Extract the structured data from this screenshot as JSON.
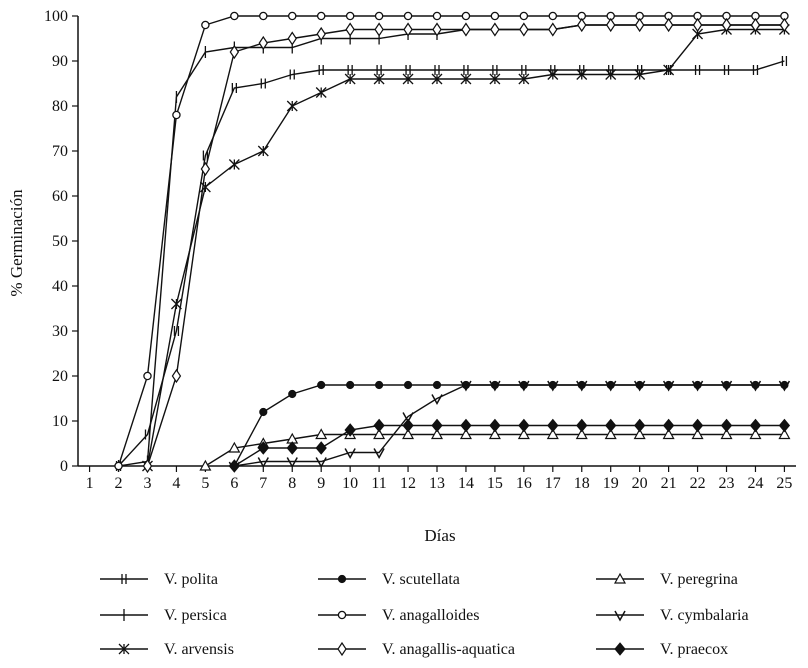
{
  "chart_data": {
    "type": "line",
    "title": "",
    "xlabel": "Días",
    "ylabel": "% Germinación",
    "xlim": [
      1,
      25
    ],
    "ylim": [
      0,
      100
    ],
    "x_ticks": [
      "1",
      "2",
      "3",
      "4",
      "5",
      "6",
      "7",
      "8",
      "9",
      "10",
      "11",
      "12",
      "13",
      "14",
      "15",
      "16",
      "17",
      "18",
      "19",
      "20",
      "21",
      "22",
      "23",
      "24",
      "25"
    ],
    "y_ticks": [
      "0",
      "10",
      "20",
      "30",
      "40",
      "50",
      "60",
      "70",
      "80",
      "90",
      "100"
    ],
    "grid": false,
    "legend_position": "bottom",
    "series": [
      {
        "name": "V. polita",
        "marker": "plus-tick",
        "x": [
          2,
          3,
          4,
          5,
          6,
          7,
          8,
          9,
          10,
          11,
          12,
          13,
          14,
          15,
          16,
          17,
          18,
          19,
          20,
          21,
          22,
          23,
          24,
          25
        ],
        "y": [
          0,
          7,
          30,
          69,
          84,
          85,
          87,
          88,
          88,
          88,
          88,
          88,
          88,
          88,
          88,
          88,
          88,
          88,
          88,
          88,
          88,
          88,
          88,
          90
        ]
      },
      {
        "name": "V. scutellata",
        "marker": "filled-circle",
        "x": [
          6,
          7,
          8,
          9,
          10,
          11,
          12,
          13,
          14,
          15,
          16,
          17,
          18,
          19,
          20,
          21,
          22,
          23,
          24,
          25
        ],
        "y": [
          0,
          12,
          16,
          18,
          18,
          18,
          18,
          18,
          18,
          18,
          18,
          18,
          18,
          18,
          18,
          18,
          18,
          18,
          18,
          18
        ]
      },
      {
        "name": "V. peregrina",
        "marker": "open-triangle-up",
        "x": [
          5,
          6,
          7,
          8,
          9,
          10,
          11,
          12,
          13,
          14,
          15,
          16,
          17,
          18,
          19,
          20,
          21,
          22,
          23,
          24,
          25
        ],
        "y": [
          0,
          4,
          5,
          6,
          7,
          7,
          7,
          7,
          7,
          7,
          7,
          7,
          7,
          7,
          7,
          7,
          7,
          7,
          7,
          7,
          7
        ]
      },
      {
        "name": "V. persica",
        "marker": "plus",
        "x": [
          2,
          3,
          4,
          5,
          6,
          7,
          8,
          9,
          10,
          11,
          12,
          13,
          14,
          15,
          16,
          17,
          18,
          19,
          20,
          21,
          22,
          23,
          24,
          25
        ],
        "y": [
          0,
          1,
          82,
          92,
          93,
          93,
          93,
          95,
          95,
          95,
          96,
          96,
          97,
          97,
          97,
          97,
          98,
          98,
          98,
          98,
          98,
          98,
          98,
          98
        ]
      },
      {
        "name": "V. anagalloides",
        "marker": "open-circle",
        "x": [
          2,
          3,
          4,
          5,
          6,
          7,
          8,
          9,
          10,
          11,
          12,
          13,
          14,
          15,
          16,
          17,
          18,
          19,
          20,
          21,
          22,
          23,
          24,
          25
        ],
        "y": [
          0,
          20,
          78,
          98,
          100,
          100,
          100,
          100,
          100,
          100,
          100,
          100,
          100,
          100,
          100,
          100,
          100,
          100,
          100,
          100,
          100,
          100,
          100,
          100
        ]
      },
      {
        "name": "V. cymbalaria",
        "marker": "triangle-down",
        "x": [
          6,
          7,
          8,
          9,
          10,
          11,
          12,
          13,
          14,
          15,
          16,
          17,
          18,
          19,
          20,
          21,
          22,
          23,
          24,
          25
        ],
        "y": [
          0,
          1,
          1,
          1,
          3,
          3,
          11,
          15,
          18,
          18,
          18,
          18,
          18,
          18,
          18,
          18,
          18,
          18,
          18,
          18
        ]
      },
      {
        "name": "V. arvensis",
        "marker": "asterisk",
        "x": [
          3,
          4,
          5,
          6,
          7,
          8,
          9,
          10,
          11,
          12,
          13,
          14,
          15,
          16,
          17,
          18,
          19,
          20,
          21,
          22,
          23,
          24,
          25
        ],
        "y": [
          0,
          36,
          62,
          67,
          70,
          80,
          83,
          86,
          86,
          86,
          86,
          86,
          86,
          86,
          87,
          87,
          87,
          87,
          88,
          96,
          97,
          97,
          97
        ]
      },
      {
        "name": "V. anagallis-aquatica",
        "marker": "open-diamond",
        "x": [
          3,
          4,
          5,
          6,
          7,
          8,
          9,
          10,
          11,
          12,
          13,
          14,
          15,
          16,
          17,
          18,
          19,
          20,
          21,
          22,
          23,
          24,
          25
        ],
        "y": [
          0,
          20,
          66,
          92,
          94,
          95,
          96,
          97,
          97,
          97,
          97,
          97,
          97,
          97,
          97,
          98,
          98,
          98,
          98,
          98,
          98,
          98,
          98
        ]
      },
      {
        "name": "V. praecox",
        "marker": "filled-diamond",
        "x": [
          6,
          7,
          8,
          9,
          10,
          11,
          12,
          13,
          14,
          15,
          16,
          17,
          18,
          19,
          20,
          21,
          22,
          23,
          24,
          25
        ],
        "y": [
          0,
          4,
          4,
          4,
          8,
          9,
          9,
          9,
          9,
          9,
          9,
          9,
          9,
          9,
          9,
          9,
          9,
          9,
          9,
          9
        ]
      }
    ]
  }
}
